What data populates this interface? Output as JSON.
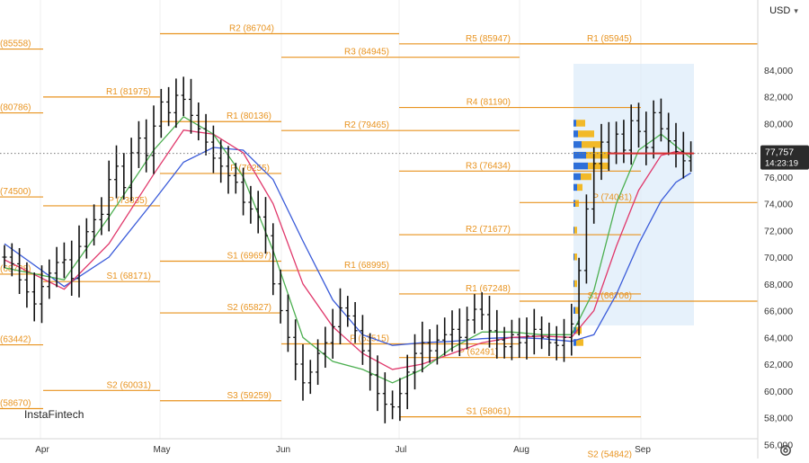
{
  "toolbar": {
    "currency_label": "USD",
    "settings_icon": "gear-icon",
    "dropdown_icon": "chevron-down-icon"
  },
  "brand": {
    "name": "InstaFintech"
  },
  "colors": {
    "pivot": "#e8931f",
    "price": "#111111",
    "ma_fast": "#4caf50",
    "ma_mid": "#e0386b",
    "ma_slow": "#3a5bd9",
    "price_line": "#d32f2f",
    "vp_up": "#2e6fd8",
    "vp_down": "#f2b928",
    "vp_zone": "#dcebf9",
    "last_price_bg": "#2b2b2b"
  },
  "chart_data": {
    "type": "candlestick",
    "y_axis": {
      "ticks": [
        "56,000",
        "58,000",
        "60,000",
        "62,000",
        "64,000",
        "66,000",
        "68,000",
        "70,000",
        "72,000",
        "74,000",
        "76,000",
        "78,000",
        "80,000",
        "82,000",
        "84,000"
      ],
      "range": [
        54500,
        86800
      ]
    },
    "x_axis": {
      "ticks": [
        "Apr",
        "May",
        "Jun",
        "Jul",
        "Aug",
        "Sep"
      ]
    },
    "last_price": {
      "value": "77,757",
      "countdown": "14:23:19",
      "numeric": 77757
    },
    "pivot_levels": [
      {
        "label": "R2 (86704)",
        "value": 86704,
        "period": "May"
      },
      {
        "label": "R1 (81975)",
        "value": 81975,
        "period": "Apr"
      },
      {
        "label": "P (73835)",
        "value": 73835,
        "period": "Apr"
      },
      {
        "label": "S1 (68171)",
        "value": 68171,
        "period": "Apr"
      },
      {
        "label": "S2 (60031)",
        "value": 60031,
        "period": "Apr"
      },
      {
        "label": "R1 (80136)",
        "value": 80136,
        "period": "May"
      },
      {
        "label": "P (76255)",
        "value": 76255,
        "period": "May"
      },
      {
        "label": "S1 (69697)",
        "value": 69697,
        "period": "May"
      },
      {
        "label": "S2 (65827)",
        "value": 65827,
        "period": "May"
      },
      {
        "label": "S3 (59259)",
        "value": 59259,
        "period": "May"
      },
      {
        "label": "R3 (84945)",
        "value": 84945,
        "period": "Jul"
      },
      {
        "label": "R2 (79465)",
        "value": 79465,
        "period": "Jul"
      },
      {
        "label": "R1 (68995)",
        "value": 68995,
        "period": "Jul"
      },
      {
        "label": "P (63515)",
        "value": 63515,
        "period": "Jul"
      },
      {
        "label": "R5 (85947)",
        "value": 85947,
        "period": "Aug"
      },
      {
        "label": "R4 (81190)",
        "value": 81190,
        "period": "Aug"
      },
      {
        "label": "R3 (76434)",
        "value": 76434,
        "period": "Aug"
      },
      {
        "label": "R2 (71677)",
        "value": 71677,
        "period": "Aug"
      },
      {
        "label": "R1 (67248)",
        "value": 67248,
        "period": "Aug"
      },
      {
        "label": "P (62491)",
        "value": 62491,
        "period": "Aug"
      },
      {
        "label": "S1 (58061)",
        "value": 58061,
        "period": "Aug"
      },
      {
        "label": "S2 (54842)",
        "value": 54842,
        "period": "Aug"
      },
      {
        "label": "R1 (85945)",
        "value": 85945,
        "period": "Sep"
      },
      {
        "label": "P (74081)",
        "value": 74081,
        "period": "Sep"
      },
      {
        "label": "S1 (66706)",
        "value": 66706,
        "period": "Sep"
      },
      {
        "label": "(85558)",
        "value": 85558,
        "period": "Mar"
      },
      {
        "label": "(80786)",
        "value": 80786,
        "period": "Mar"
      },
      {
        "label": "(74500)",
        "value": 74500,
        "period": "Mar"
      },
      {
        "label": "(68728)",
        "value": 68728,
        "period": "Mar"
      },
      {
        "label": "(63442)",
        "value": 63442,
        "period": "Mar"
      },
      {
        "label": "(58670)",
        "value": 58670,
        "period": "Mar"
      }
    ],
    "price_path": [
      [
        0,
        70000
      ],
      [
        1,
        69500
      ],
      [
        2,
        68300
      ],
      [
        3,
        67400
      ],
      [
        4,
        66500
      ],
      [
        5,
        67800
      ],
      [
        6,
        68800
      ],
      [
        7,
        69600
      ],
      [
        8,
        69800
      ],
      [
        9,
        68400
      ],
      [
        10,
        70800
      ],
      [
        11,
        71900
      ],
      [
        12,
        72800
      ],
      [
        13,
        73200
      ],
      [
        14,
        75800
      ],
      [
        15,
        76800
      ],
      [
        16,
        75200
      ],
      [
        17,
        77800
      ],
      [
        18,
        78900
      ],
      [
        19,
        77600
      ],
      [
        20,
        79800
      ],
      [
        21,
        81600
      ],
      [
        22,
        80800
      ],
      [
        23,
        82100
      ],
      [
        24,
        81800
      ],
      [
        25,
        80600
      ],
      [
        26,
        79600
      ],
      [
        27,
        78600
      ],
      [
        28,
        77400
      ],
      [
        29,
        76800
      ],
      [
        30,
        76100
      ],
      [
        31,
        75600
      ],
      [
        32,
        74100
      ],
      [
        33,
        73600
      ],
      [
        34,
        73000
      ],
      [
        35,
        71600
      ],
      [
        36,
        68000
      ],
      [
        37,
        66000
      ],
      [
        38,
        64000
      ],
      [
        39,
        62000
      ],
      [
        40,
        60600
      ],
      [
        41,
        61400
      ],
      [
        42,
        62800
      ],
      [
        43,
        63600
      ],
      [
        44,
        64800
      ],
      [
        45,
        66200
      ],
      [
        46,
        65600
      ],
      [
        47,
        64500
      ],
      [
        48,
        63000
      ],
      [
        49,
        61200
      ],
      [
        50,
        59800
      ],
      [
        51,
        59000
      ],
      [
        52,
        58800
      ],
      [
        53,
        59800
      ],
      [
        54,
        61400
      ],
      [
        55,
        62800
      ],
      [
        56,
        63600
      ],
      [
        57,
        63000
      ],
      [
        58,
        63800
      ],
      [
        59,
        64200
      ],
      [
        60,
        64600
      ],
      [
        61,
        64000
      ],
      [
        62,
        65300
      ],
      [
        63,
        66100
      ],
      [
        64,
        65700
      ],
      [
        65,
        64500
      ],
      [
        66,
        63800
      ],
      [
        67,
        63300
      ],
      [
        68,
        64200
      ],
      [
        69,
        63600
      ],
      [
        70,
        64100
      ],
      [
        71,
        64600
      ],
      [
        72,
        64000
      ],
      [
        73,
        63600
      ],
      [
        74,
        63400
      ],
      [
        75,
        64000
      ],
      [
        76,
        65000
      ],
      [
        77,
        69000
      ],
      [
        78,
        73600
      ],
      [
        79,
        77000
      ],
      [
        80,
        78600
      ],
      [
        81,
        77800
      ],
      [
        82,
        79200
      ],
      [
        83,
        78000
      ],
      [
        84,
        80200
      ],
      [
        85,
        79400
      ],
      [
        86,
        78200
      ],
      [
        87,
        80800
      ],
      [
        88,
        79600
      ],
      [
        89,
        78700
      ],
      [
        90,
        77900
      ],
      [
        91,
        77200
      ],
      [
        92,
        77757
      ]
    ],
    "ma_fast_path": [
      [
        0,
        69200
      ],
      [
        8,
        68300
      ],
      [
        14,
        73000
      ],
      [
        20,
        78000
      ],
      [
        24,
        80500
      ],
      [
        28,
        79200
      ],
      [
        32,
        76000
      ],
      [
        36,
        70500
      ],
      [
        40,
        64000
      ],
      [
        44,
        62200
      ],
      [
        48,
        61600
      ],
      [
        52,
        60600
      ],
      [
        56,
        61600
      ],
      [
        60,
        63200
      ],
      [
        64,
        64400
      ],
      [
        68,
        64400
      ],
      [
        72,
        64200
      ],
      [
        76,
        64200
      ],
      [
        79,
        67500
      ],
      [
        82,
        74000
      ],
      [
        85,
        78000
      ],
      [
        88,
        79200
      ],
      [
        90,
        78300
      ],
      [
        92,
        77400
      ]
    ],
    "ma_mid_path": [
      [
        0,
        69800
      ],
      [
        8,
        67600
      ],
      [
        14,
        71000
      ],
      [
        20,
        76200
      ],
      [
        24,
        79500
      ],
      [
        28,
        79200
      ],
      [
        32,
        77800
      ],
      [
        36,
        74000
      ],
      [
        40,
        68000
      ],
      [
        44,
        64800
      ],
      [
        48,
        62800
      ],
      [
        52,
        61600
      ],
      [
        56,
        62000
      ],
      [
        60,
        62800
      ],
      [
        64,
        63600
      ],
      [
        68,
        64000
      ],
      [
        72,
        64100
      ],
      [
        76,
        64000
      ],
      [
        79,
        66000
      ],
      [
        82,
        70800
      ],
      [
        85,
        75000
      ],
      [
        88,
        77600
      ],
      [
        90,
        77900
      ],
      [
        92,
        77700
      ]
    ],
    "ma_slow_path": [
      [
        0,
        71000
      ],
      [
        8,
        67800
      ],
      [
        14,
        70000
      ],
      [
        20,
        74200
      ],
      [
        24,
        77100
      ],
      [
        28,
        78200
      ],
      [
        32,
        78000
      ],
      [
        36,
        75800
      ],
      [
        40,
        71200
      ],
      [
        44,
        66800
      ],
      [
        48,
        64200
      ],
      [
        52,
        63400
      ],
      [
        56,
        63600
      ],
      [
        60,
        63700
      ],
      [
        64,
        63900
      ],
      [
        68,
        64000
      ],
      [
        72,
        63900
      ],
      [
        76,
        63700
      ],
      [
        79,
        64200
      ],
      [
        82,
        67200
      ],
      [
        85,
        71000
      ],
      [
        88,
        74200
      ],
      [
        90,
        75600
      ],
      [
        92,
        76300
      ]
    ]
  }
}
